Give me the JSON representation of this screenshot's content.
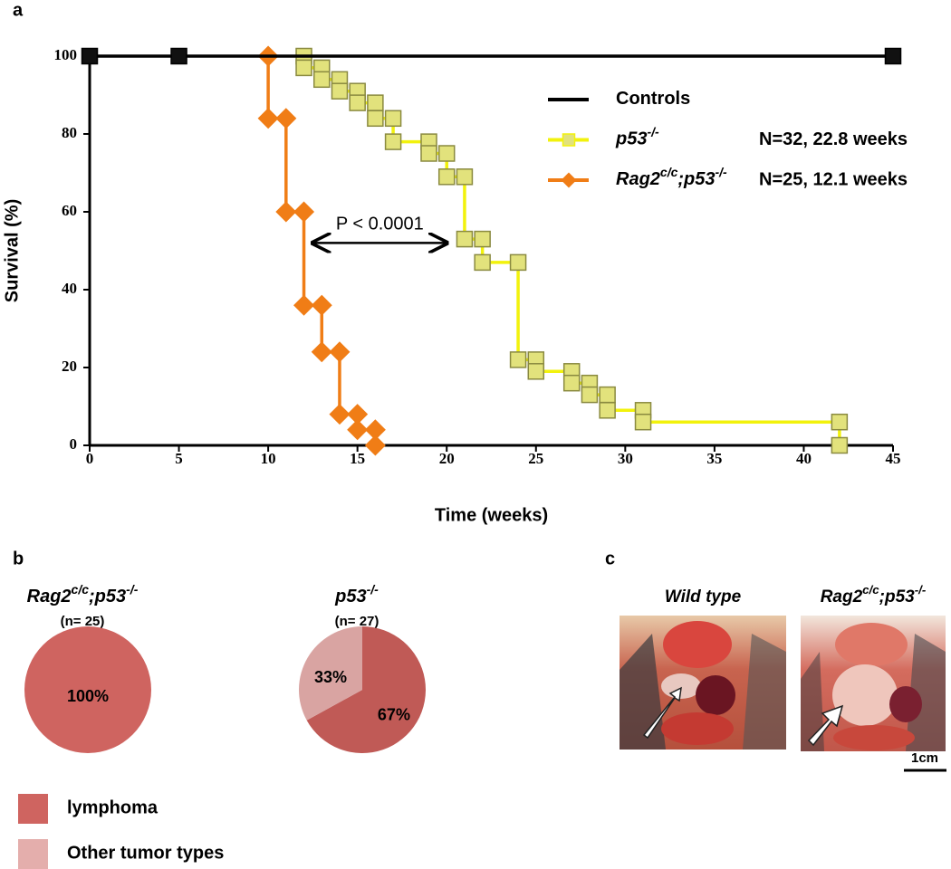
{
  "panel_labels": [
    "a",
    "b",
    "c"
  ],
  "chart_data": [
    {
      "type": "line",
      "xlabel": "Time (weeks)",
      "ylabel": "Survival (%)",
      "xlim": [
        0,
        45
      ],
      "ylim": [
        0,
        100
      ],
      "xticks": [
        0,
        5,
        10,
        15,
        20,
        25,
        30,
        35,
        40,
        45
      ],
      "yticks": [
        0,
        20,
        40,
        60,
        80,
        100
      ],
      "legend": "upper right",
      "series": [
        {
          "name": [
            {
              "text": "p53",
              "sup": false
            },
            {
              "text": "-/-",
              "sup": true
            }
          ],
          "note": "N=32,  22.8 weeks",
          "color": "#f2f20c",
          "marker": "square",
          "marker_fill": "#e2e27c",
          "legend_marker": true,
          "x": [
            12,
            12,
            13,
            13,
            14,
            14,
            15,
            15,
            16,
            16,
            17,
            17,
            19,
            19,
            20,
            20,
            21,
            21,
            22,
            22,
            24,
            24,
            25,
            25,
            27,
            27,
            28,
            28,
            29,
            29,
            31,
            31,
            42,
            42
          ],
          "values": [
            100,
            97,
            97,
            94,
            94,
            91,
            91,
            88,
            88,
            84,
            84,
            78,
            78,
            75,
            75,
            69,
            69,
            53,
            53,
            47,
            47,
            22,
            22,
            19,
            19,
            16,
            16,
            13,
            13,
            9,
            9,
            6,
            6,
            0
          ]
        },
        {
          "name": [
            {
              "text": "Rag2",
              "sup": false
            },
            {
              "text": "c/c",
              "sup": true
            },
            {
              "text": ";p53",
              "sup": false
            },
            {
              "text": "-/-",
              "sup": true
            }
          ],
          "note": "N=25,  12.1 weeks",
          "color": "#f07d16",
          "marker": "diamond",
          "marker_fill": "#f07d16",
          "legend_marker": true,
          "x": [
            10,
            10,
            11,
            11,
            12,
            12,
            13,
            13,
            14,
            14,
            15,
            15,
            16,
            16
          ],
          "values": [
            100,
            84,
            84,
            60,
            60,
            36,
            36,
            24,
            24,
            8,
            8,
            4,
            4,
            0
          ]
        },
        {
          "name": [
            {
              "text": "Controls",
              "sup": false
            }
          ],
          "color": "#000000",
          "marker": "square",
          "marker_fill": "#111111",
          "legend_marker": false,
          "x": [
            0,
            5,
            45
          ],
          "values": [
            100,
            100,
            100
          ]
        }
      ],
      "annotations": [
        {
          "text": "P < 0.0001",
          "x_from": 12.5,
          "x_to": 20,
          "y": 52
        }
      ]
    },
    {
      "type": "pie",
      "title": [
        {
          "text": "Rag2",
          "sup": false
        },
        {
          "text": "c/c",
          "sup": true
        },
        {
          "text": ";p53",
          "sup": false
        },
        {
          "text": "-/-",
          "sup": true
        }
      ],
      "subtitle": "(n= 25)",
      "categories": [
        "lymphoma",
        "Other tumor types"
      ],
      "values": [
        100,
        0
      ],
      "value_labels": [
        "100%",
        null
      ],
      "colors": [
        "#cf6460",
        "#e4aeac"
      ]
    },
    {
      "type": "pie",
      "title": [
        {
          "text": "p53",
          "sup": false
        },
        {
          "text": "-/-",
          "sup": true
        }
      ],
      "subtitle": "(n= 27)",
      "values": [
        67,
        33
      ],
      "value_labels": [
        "67%",
        "33%"
      ],
      "colors": [
        "#c05a56",
        "#d9a4a2"
      ]
    }
  ],
  "photos": {
    "labels": [
      [
        {
          "text": "Wild type",
          "sup": false
        }
      ],
      [
        {
          "text": "Rag2",
          "sup": false
        },
        {
          "text": "c/c",
          "sup": true
        },
        {
          "text": ";p53",
          "sup": false
        },
        {
          "text": "-/-",
          "sup": true
        }
      ]
    ],
    "scale_bar": "1cm"
  }
}
